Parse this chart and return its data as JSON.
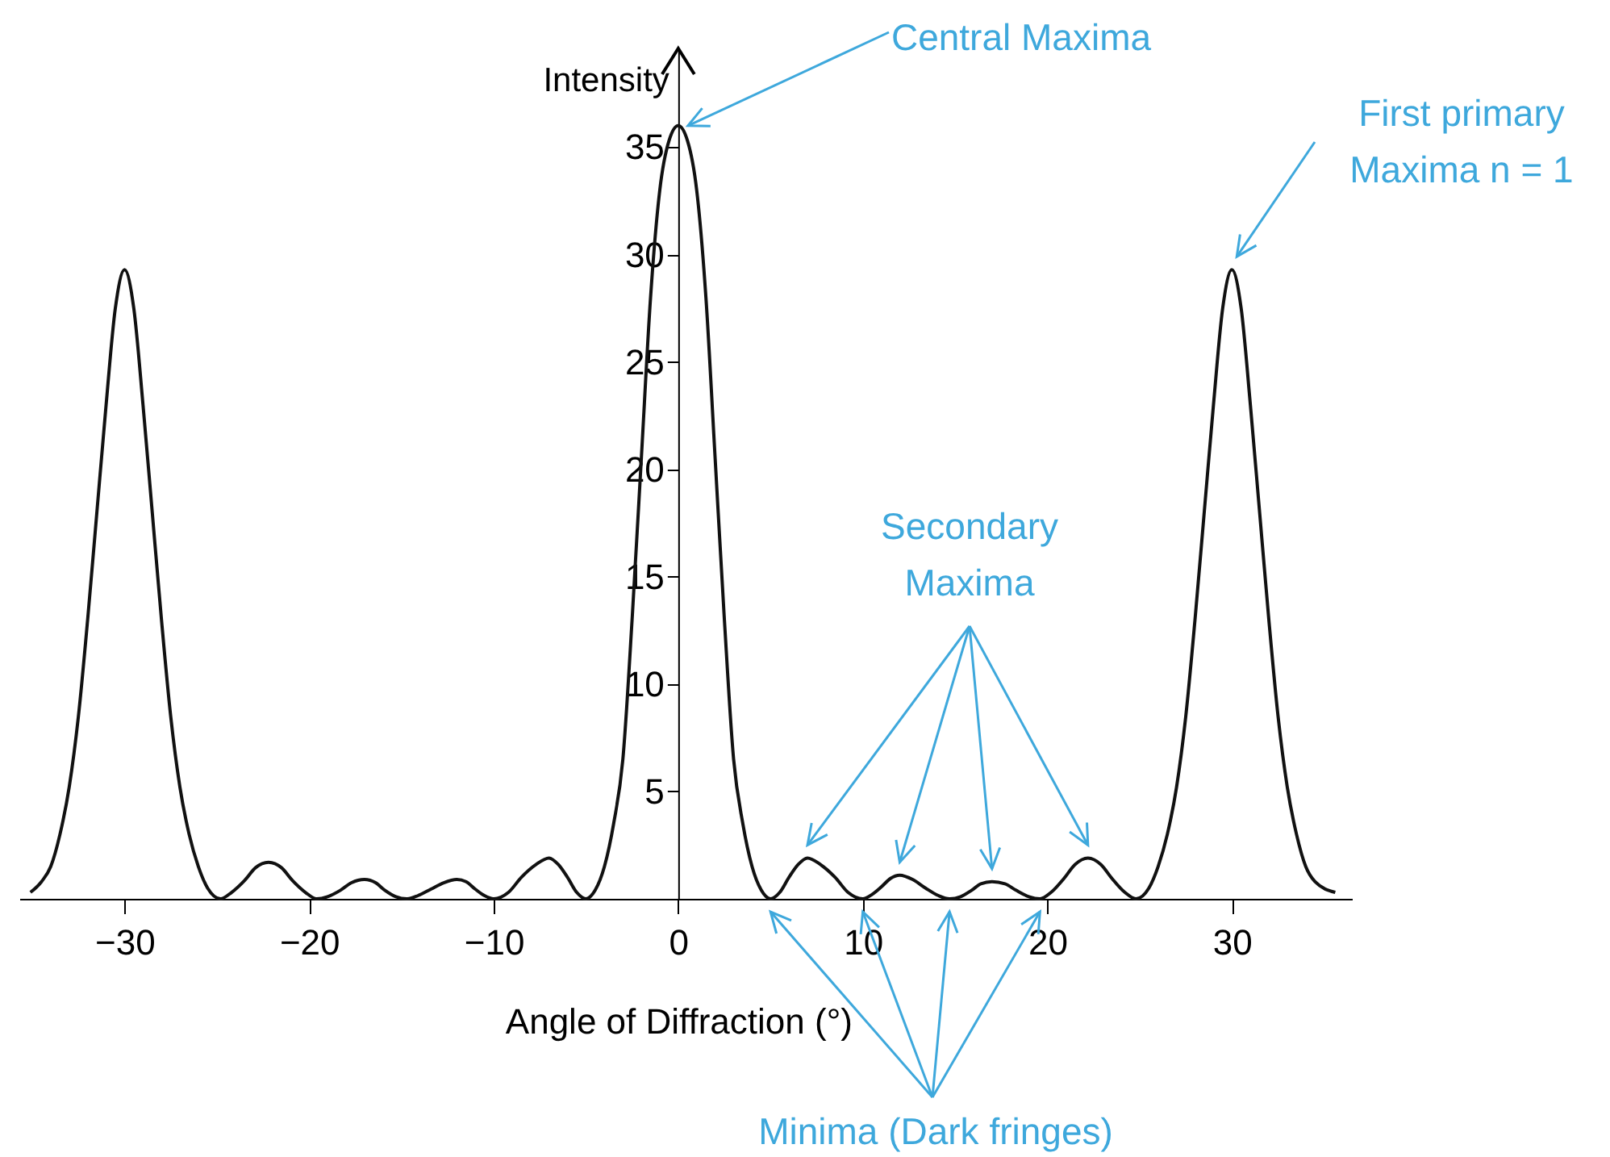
{
  "chart_data": {
    "type": "line",
    "xlabel": "Angle of Diffraction (°)",
    "ylabel": "Intensity",
    "xlim": [
      -35.7,
      36.5
    ],
    "ylim": [
      0,
      39.6
    ],
    "xticks": [
      -30,
      -20,
      -10,
      0,
      10,
      20,
      30
    ],
    "yticks": [
      5,
      10,
      15,
      20,
      25,
      30,
      35
    ],
    "x": [
      -35.1,
      -34.5,
      -34,
      -33.5,
      -33,
      -32.5,
      -32,
      -31.5,
      -31,
      -30.5,
      -30,
      -29.5,
      -29,
      -28.5,
      -28,
      -27.5,
      -27,
      -26.5,
      -26,
      -25.5,
      -24.8,
      -24.2,
      -23.5,
      -22.9,
      -22.2,
      -21.5,
      -20.9,
      -20.2,
      -19.6,
      -19,
      -18.3,
      -17.7,
      -17,
      -16.4,
      -15.9,
      -15.3,
      -14.7,
      -14.1,
      -13.4,
      -12.7,
      -12,
      -11.5,
      -11,
      -10.5,
      -10,
      -9.2,
      -8.5,
      -7.7,
      -7,
      -6.5,
      -6,
      -5.5,
      -5,
      -4.5,
      -4,
      -3.5,
      -3,
      -2.5,
      -2,
      -1.5,
      -1,
      -0.5,
      0,
      0.5,
      1,
      1.5,
      2,
      2.5,
      3,
      3.5,
      4,
      4.5,
      5,
      5.5,
      6,
      6.5,
      7,
      7.7,
      8.5,
      9.2,
      10,
      10.5,
      11,
      11.5,
      12,
      12.7,
      13.4,
      14.1,
      14.7,
      15.3,
      15.9,
      16.4,
      17,
      17.7,
      18.3,
      19,
      19.6,
      20.2,
      20.9,
      21.5,
      22.2,
      22.9,
      23.5,
      24.2,
      24.8,
      25.5,
      26,
      26.5,
      27,
      27.5,
      28,
      28.5,
      29,
      29.5,
      30,
      30.5,
      31,
      31.5,
      32,
      32.5,
      33,
      33.5,
      34,
      34.5,
      35.6
    ],
    "series": [
      {
        "color": "#111111",
        "values": [
          0.3,
          0.8,
          1.5,
          3,
          5.2,
          8.5,
          13,
          18,
          23,
          27.5,
          29.3,
          27.5,
          23,
          18,
          13,
          8.5,
          5.2,
          3,
          1.5,
          0.5,
          0,
          0.3,
          0.85,
          1.45,
          1.7,
          1.45,
          0.85,
          0.3,
          0,
          0.1,
          0.4,
          0.75,
          0.9,
          0.75,
          0.4,
          0.1,
          0,
          0.15,
          0.45,
          0.75,
          0.9,
          0.8,
          0.45,
          0.15,
          0,
          0.3,
          1.0,
          1.6,
          1.9,
          1.6,
          1.0,
          0.3,
          0,
          0.4,
          1.5,
          3.5,
          6.5,
          13,
          20.5,
          28,
          33,
          35.3,
          36,
          35.3,
          33,
          28,
          20.5,
          13,
          6.5,
          3.5,
          1.5,
          0.4,
          0,
          0.3,
          1.0,
          1.6,
          1.9,
          1.6,
          1.0,
          0.3,
          0,
          0.2,
          0.55,
          0.95,
          1.1,
          0.9,
          0.5,
          0.15,
          0,
          0.1,
          0.4,
          0.7,
          0.8,
          0.7,
          0.4,
          0.1,
          0,
          0.3,
          0.95,
          1.6,
          1.9,
          1.6,
          0.95,
          0.3,
          0,
          0.5,
          1.5,
          3,
          5.2,
          8.5,
          13,
          18,
          23,
          27.5,
          29.3,
          27.5,
          23,
          18,
          13,
          8.5,
          5.2,
          3,
          1.5,
          0.8,
          0.3
        ]
      }
    ],
    "annotations": [
      {
        "text": "Central Maxima",
        "x": 0,
        "y": 36
      },
      {
        "text": "First primary Maxima n = 1",
        "x": 30,
        "y": 29.3
      },
      "Secondary Maxima",
      "Minima (Dark fringes)"
    ]
  }
}
